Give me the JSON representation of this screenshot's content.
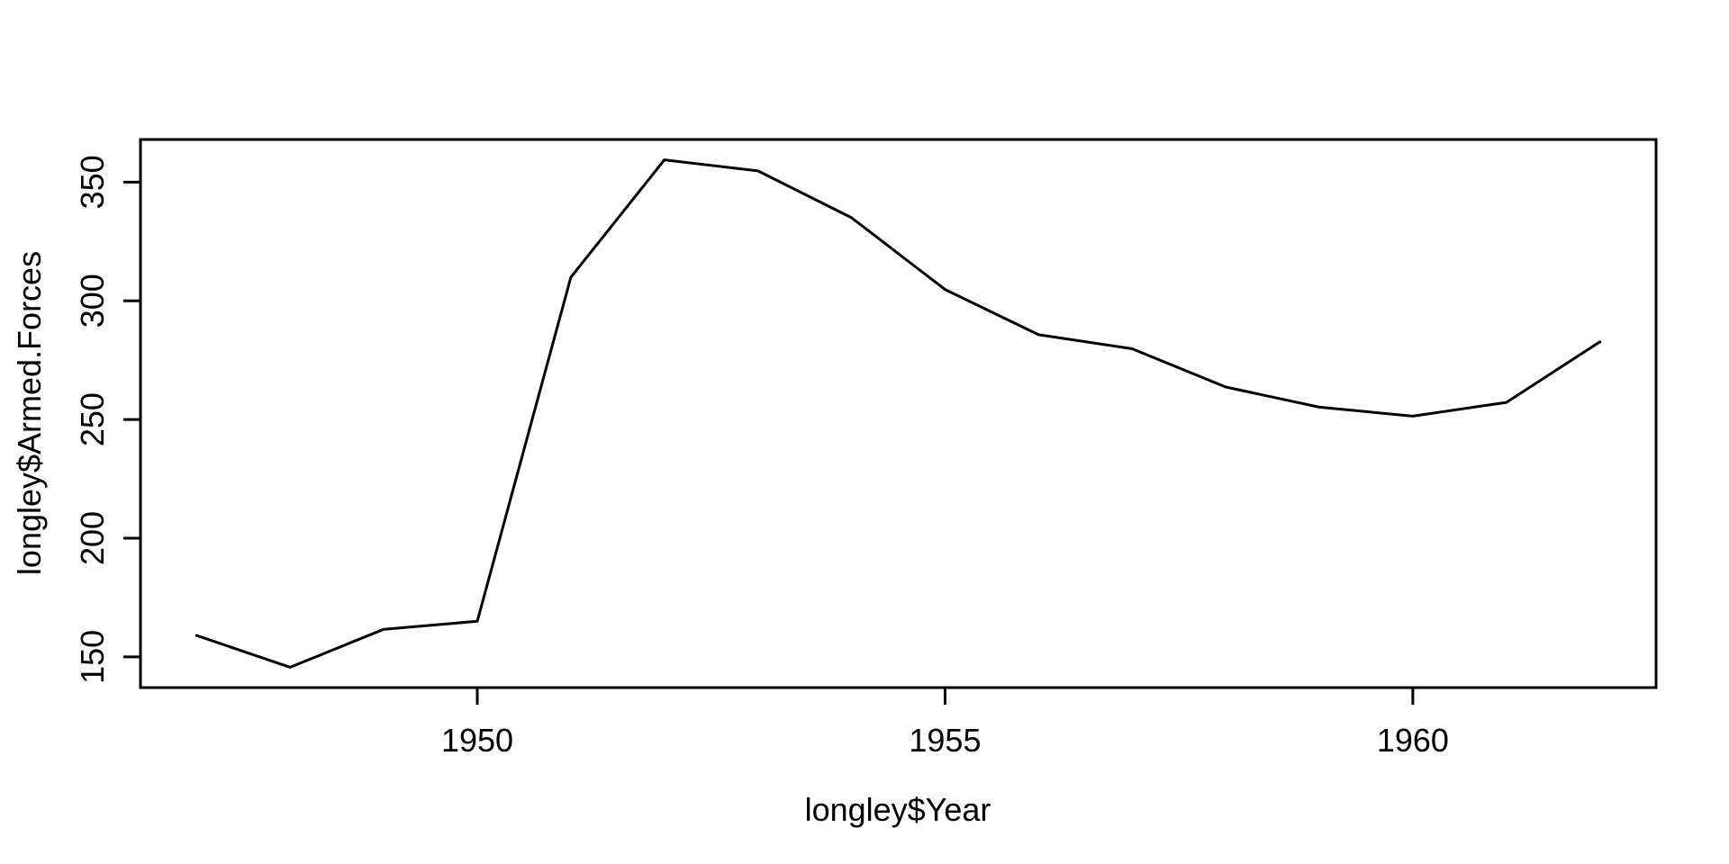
{
  "figure": {
    "background": "#ffffff",
    "foreground": "#000000"
  },
  "chart_data": {
    "type": "line",
    "title": "",
    "xlabel": "longley$Year",
    "ylabel": "longley$Armed.Forces",
    "x": [
      1947,
      1948,
      1949,
      1950,
      1951,
      1952,
      1953,
      1954,
      1955,
      1956,
      1957,
      1958,
      1959,
      1960,
      1961,
      1962
    ],
    "series": [
      {
        "name": "longley$Armed.Forces",
        "values": [
          159.0,
          145.6,
          161.6,
          165.0,
          309.9,
          359.4,
          354.7,
          335.0,
          304.8,
          285.7,
          279.8,
          263.7,
          255.2,
          251.4,
          257.2,
          282.7
        ]
      }
    ],
    "x_ticks": [
      1950,
      1955,
      1960
    ],
    "y_ticks": [
      150,
      200,
      250,
      300,
      350
    ],
    "x_tick_labels": [
      "1950",
      "1955",
      "1960"
    ],
    "y_tick_labels": [
      "150",
      "200",
      "250",
      "300",
      "350"
    ],
    "xlim": [
      1946.4,
      1962.6
    ],
    "ylim": [
      137.05,
      367.95
    ],
    "line_color": "#000000",
    "axis_color": "#000000",
    "grid": false,
    "legend": "none"
  }
}
